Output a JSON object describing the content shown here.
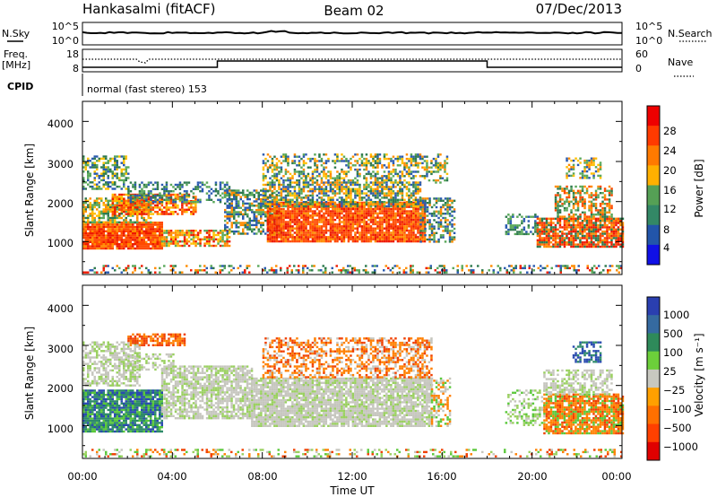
{
  "header": {
    "station": "Hankasalmi (fitACF)",
    "beam": "Beam 02",
    "date": "07/Dec/2013"
  },
  "params": {
    "nsky_label": "N.Sky",
    "nsearch_label": "N.Search",
    "freq_label_1": "Freq.",
    "freq_label_2": "[MHz]",
    "nave_label": "Nave",
    "cpid_label": "CPID",
    "cpid_text": "normal (fast stereo) 153",
    "noise_ticks_left": [
      "10^5",
      "10^0"
    ],
    "noise_ticks_right": [
      "10^5",
      "10^0"
    ],
    "freq_ticks": [
      "18",
      "8"
    ],
    "nave_ticks": [
      "60",
      "0"
    ]
  },
  "colors": {
    "power_scale": [
      "#1010e6",
      "#2255aa",
      "#338866",
      "#55a055",
      "#ffb000",
      "#ff7a00",
      "#ff3a00",
      "#ee0000"
    ],
    "velocity_scale": [
      "#2a3fb0",
      "#356aa0",
      "#2e8a5a",
      "#6ccf3a",
      "#c8c8c0",
      "#ffa000",
      "#ff7000",
      "#ff4000",
      "#e00000"
    ]
  },
  "chart_data": [
    {
      "type": "heatmap",
      "panel": "power",
      "ylabel": "Slant Range [km]",
      "yticks": [
        "1000",
        "2000",
        "3000",
        "4000"
      ],
      "ylim": [
        180,
        4500
      ],
      "colorbar_label": "Power [dB]",
      "colorbar_ticks": [
        "4",
        "8",
        "12",
        "16",
        "20",
        "24",
        "28"
      ],
      "colorbar_range": [
        0,
        30
      ]
    },
    {
      "type": "heatmap",
      "panel": "velocity",
      "ylabel": "Slant Range [km]",
      "yticks": [
        "1000",
        "2000",
        "3000",
        "4000"
      ],
      "ylim": [
        180,
        4500
      ],
      "colorbar_label": "Velocity [m s⁻¹]",
      "colorbar_ticks": [
        "1000",
        "500",
        "100",
        "25",
        "−25",
        "−100",
        "−500",
        "−1000"
      ]
    }
  ],
  "xaxis": {
    "label": "Time UT",
    "ticks": [
      "00:00",
      "04:00",
      "08:00",
      "12:00",
      "16:00",
      "20:00",
      "00:00"
    ],
    "range_hours": [
      0,
      24
    ]
  }
}
